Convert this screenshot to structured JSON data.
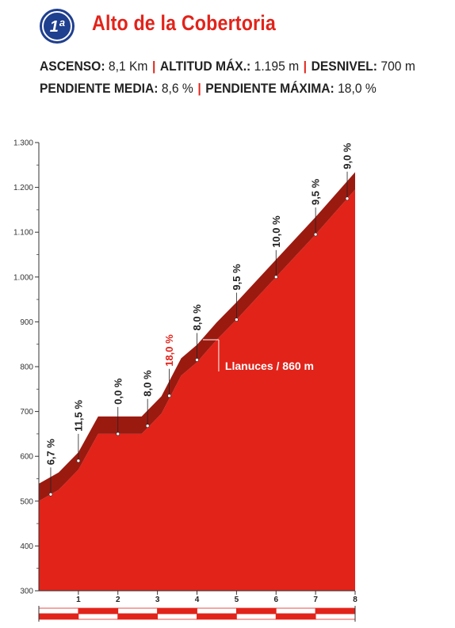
{
  "header": {
    "category": "1ª",
    "title": "Alto de la Cobertoria",
    "icon": "category-badge-icon"
  },
  "stats": {
    "ascenso_label": "ASCENSO:",
    "ascenso_value": "8,1 Km",
    "altitud_label": "ALTITUD MÁX.:",
    "altitud_value": "1.195 m",
    "desnivel_label": "DESNIVEL:",
    "desnivel_value": "700 m",
    "pendiente_media_label": "PENDIENTE MEDIA:",
    "pendiente_media_value": "8,6 %",
    "pendiente_maxima_label": "PENDIENTE MÁXIMA:",
    "pendiente_maxima_value": "18,0 %"
  },
  "colors": {
    "accent": "#e2231a",
    "profile_fill": "#e2231a",
    "profile_top": "#9b1a10",
    "axis": "#333333"
  },
  "chart_data": {
    "type": "area",
    "x_unit": "km",
    "y_unit": "m",
    "xlim": [
      0,
      8
    ],
    "ylim": [
      300,
      1300
    ],
    "y_ticks": [
      300,
      400,
      500,
      600,
      700,
      800,
      900,
      1000,
      1100,
      1200,
      1300
    ],
    "y_tick_labels": [
      "300",
      "400",
      "500",
      "600",
      "700",
      "800",
      "900",
      "1.000",
      "1.100",
      "1.200",
      "1.300"
    ],
    "x_ticks": [
      1,
      2,
      3,
      4,
      5,
      6,
      7,
      8
    ],
    "x_tick_labels": [
      "1",
      "2",
      "3",
      "4",
      "5",
      "6",
      "7",
      "8"
    ],
    "profile": [
      {
        "x": 0.0,
        "y": 500
      },
      {
        "x": 0.5,
        "y": 525
      },
      {
        "x": 1.0,
        "y": 570
      },
      {
        "x": 1.5,
        "y": 650
      },
      {
        "x": 2.0,
        "y": 650
      },
      {
        "x": 2.6,
        "y": 650
      },
      {
        "x": 3.1,
        "y": 695
      },
      {
        "x": 3.6,
        "y": 780
      },
      {
        "x": 4.0,
        "y": 810
      },
      {
        "x": 4.5,
        "y": 860
      },
      {
        "x": 5.0,
        "y": 905
      },
      {
        "x": 6.0,
        "y": 1000
      },
      {
        "x": 7.0,
        "y": 1095
      },
      {
        "x": 8.0,
        "y": 1195
      }
    ],
    "gradients": [
      {
        "x": 0.3,
        "y": 515,
        "label": "6,7 %",
        "highlight": false
      },
      {
        "x": 1.0,
        "y": 590,
        "label": "11,5 %",
        "highlight": false
      },
      {
        "x": 2.0,
        "y": 650,
        "label": "0,0 %",
        "highlight": false
      },
      {
        "x": 2.75,
        "y": 668,
        "label": "8,0 %",
        "highlight": false
      },
      {
        "x": 3.3,
        "y": 735,
        "label": "18,0 %",
        "highlight": true
      },
      {
        "x": 4.0,
        "y": 815,
        "label": "8,0 %",
        "highlight": false
      },
      {
        "x": 5.0,
        "y": 905,
        "label": "9,5 %",
        "highlight": false
      },
      {
        "x": 6.0,
        "y": 1000,
        "label": "10,0 %",
        "highlight": false
      },
      {
        "x": 7.0,
        "y": 1095,
        "label": "9,5 %",
        "highlight": false
      },
      {
        "x": 7.8,
        "y": 1175,
        "label": "9,0 %",
        "highlight": false
      }
    ],
    "annotations": [
      {
        "x": 4.55,
        "y": 860,
        "label": "Llanuces / 860 m"
      }
    ]
  }
}
